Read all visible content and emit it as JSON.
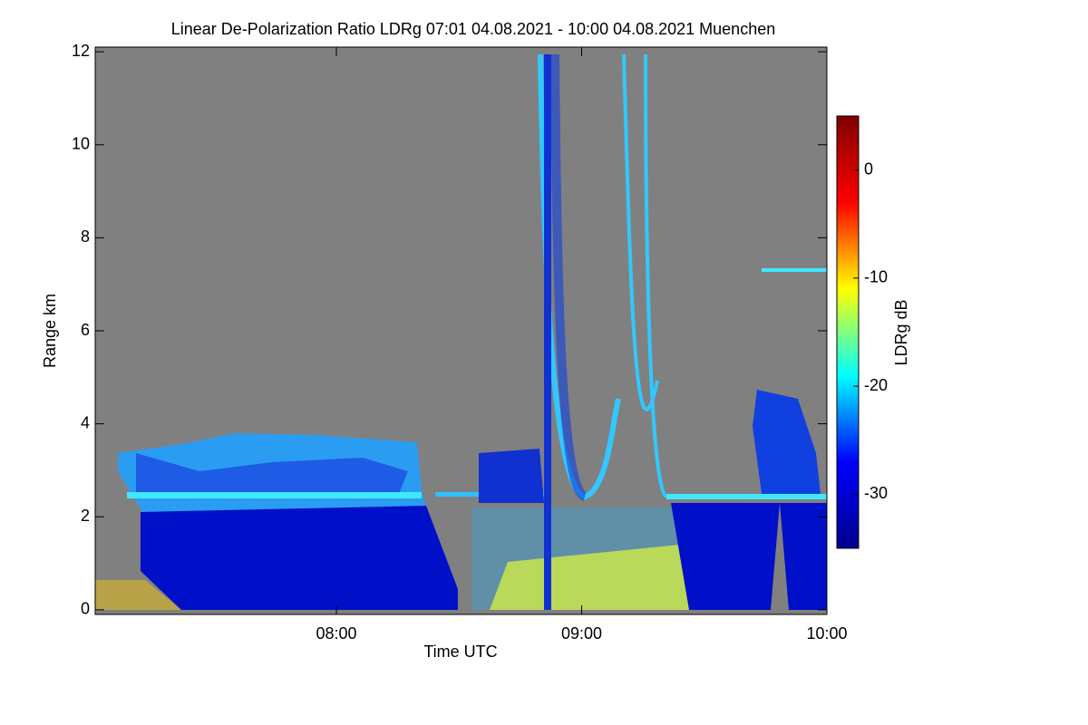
{
  "chart_data": {
    "type": "heatmap",
    "title": "Linear De-Polarization Ratio LDRg   07:01 04.08.2021 - 10:00 04.08.2021 Muenchen",
    "x_label": "Time UTC",
    "y_label": "Range km",
    "colorbar_label": "LDRg dB",
    "xlim": [
      421,
      600
    ],
    "xticks": [
      {
        "value": 480,
        "label": "08:00"
      },
      {
        "value": 540,
        "label": "09:00"
      },
      {
        "value": 600,
        "label": "10:00"
      }
    ],
    "ylim": [
      -0.1,
      12.1
    ],
    "yticks": [
      0,
      2,
      4,
      6,
      8,
      10,
      12
    ],
    "clim": [
      -35,
      5
    ],
    "cticks": [
      0,
      -10,
      -20,
      -30
    ],
    "colormap": [
      "#00008f",
      "#0000ff",
      "#00ffff",
      "#ffff00",
      "#ff0000",
      "#800000"
    ],
    "background": "#808080"
  }
}
